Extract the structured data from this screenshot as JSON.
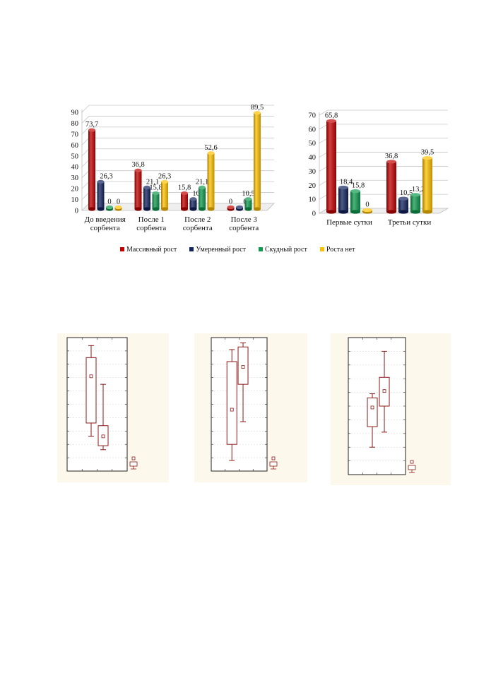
{
  "colors": {
    "massive": "#c00000",
    "moderate": "#12235e",
    "scarce": "#0f9a4e",
    "none": "#ffc000",
    "boxplot": "#8b1a1a",
    "panel_background": "#fdf8ec"
  },
  "legend": [
    {
      "label": "Массивный рост",
      "color": "#c00000"
    },
    {
      "label": "Умеренный рост",
      "color": "#12235e"
    },
    {
      "label": "Скудный рост",
      "color": "#0f9a4e"
    },
    {
      "label": "Роста нет",
      "color": "#ffc000"
    }
  ],
  "chart_data": [
    {
      "type": "bar",
      "style": "3d-cylinder",
      "categories": [
        "До введения сорбента",
        "После 1 сорбента",
        "После 2 сорбента",
        "После 3 сорбента"
      ],
      "category_lines": [
        [
          "До введения",
          "сорбента"
        ],
        [
          "После 1",
          "сорбента"
        ],
        [
          "После 2",
          "сорбента"
        ],
        [
          "После 3",
          "сорбента"
        ]
      ],
      "series": [
        {
          "name": "Массивный рост",
          "values": [
            73.7,
            36.8,
            15.8,
            0
          ]
        },
        {
          "name": "Умеренный рост",
          "values": [
            26.3,
            21.1,
            10.5,
            0
          ]
        },
        {
          "name": "Скудный рост",
          "values": [
            0,
            15.8,
            21.1,
            10.5
          ]
        },
        {
          "name": "Роста нет",
          "values": [
            0,
            26.3,
            52.6,
            89.5
          ]
        }
      ],
      "data_labels": [
        [
          "73,7",
          "36,8",
          "15,8",
          "0"
        ],
        [
          "26,3",
          "21,1",
          "10,5",
          "0"
        ],
        [
          "0",
          "15,8",
          "21,1",
          "10,5"
        ],
        [
          "0",
          "26,3",
          "52,6",
          "89,5"
        ]
      ],
      "ylim": [
        0,
        90
      ],
      "yticks": [
        0,
        10,
        20,
        30,
        40,
        50,
        60,
        70,
        80,
        90
      ],
      "grid": true,
      "legend_position": "bottom"
    },
    {
      "type": "bar",
      "style": "3d-cylinder",
      "categories": [
        "Первые сутки",
        "Третьи сутки"
      ],
      "category_lines": [
        [
          "Первые сутки"
        ],
        [
          "Третьи сутки"
        ]
      ],
      "series": [
        {
          "name": "Массивный рост",
          "values": [
            65.8,
            36.8
          ]
        },
        {
          "name": "Умеренный рост",
          "values": [
            18.4,
            10.5
          ]
        },
        {
          "name": "Скудный рост",
          "values": [
            15.8,
            13.2
          ]
        },
        {
          "name": "Роста нет",
          "values": [
            0,
            39.5
          ]
        }
      ],
      "data_labels": [
        [
          "65,8",
          "36,8"
        ],
        [
          "18,4",
          "10,5"
        ],
        [
          "15,8",
          "13,2"
        ],
        [
          "0",
          "39,5"
        ]
      ],
      "ylim": [
        0,
        70
      ],
      "yticks": [
        0,
        10,
        20,
        30,
        40,
        50,
        60,
        70
      ],
      "grid": true,
      "legend_position": "bottom"
    },
    {
      "type": "boxplot",
      "ylim": [
        0,
        10
      ],
      "grid": true,
      "boxes": [
        {
          "min": 2.6,
          "q1": 3.6,
          "median": 7.1,
          "q3": 8.5,
          "max": 9.4
        },
        {
          "min": 1.6,
          "q1": 1.9,
          "median": 2.6,
          "q3": 3.4,
          "max": 6.5
        }
      ],
      "legend_icon": true
    },
    {
      "type": "boxplot",
      "ylim": [
        0,
        10
      ],
      "grid": true,
      "boxes": [
        {
          "min": 0.8,
          "q1": 2.0,
          "median": 4.6,
          "q3": 8.2,
          "max": 9.1
        },
        {
          "min": 3.7,
          "q1": 6.5,
          "median": 7.8,
          "q3": 9.3,
          "max": 9.6
        }
      ],
      "legend_icon": true
    },
    {
      "type": "boxplot",
      "ylim": [
        0,
        10
      ],
      "grid": true,
      "boxes": [
        {
          "min": 2.0,
          "q1": 3.5,
          "median": 4.9,
          "q3": 5.6,
          "max": 5.9
        },
        {
          "min": 3.1,
          "q1": 5.0,
          "median": 6.1,
          "q3": 7.1,
          "max": 9.0
        }
      ],
      "legend_icon": true
    }
  ]
}
